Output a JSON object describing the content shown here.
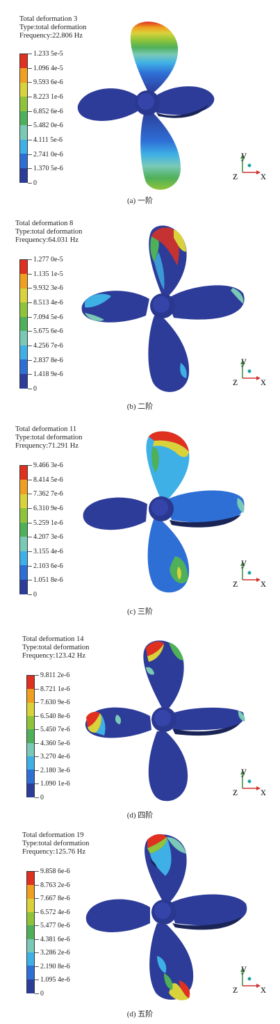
{
  "colors": {
    "scale": [
      "#2b3d99",
      "#2e6fd6",
      "#3fb0e6",
      "#79c9b6",
      "#4fb05a",
      "#8fc43a",
      "#d9d23a",
      "#f0a020",
      "#e03020"
    ],
    "blade_base": "#2d3c98",
    "blade_dark": "#1a2456",
    "axis_y": "#3a8a3a",
    "axis_x": "#d03030",
    "axis_dot": "#20a0a0"
  },
  "axes": {
    "y": "y",
    "x": "x",
    "z": "z"
  },
  "panels": [
    {
      "id": "mode1",
      "title": "Total deformation 3",
      "type": "Type:total deformation",
      "frequency": "Frequency:22.806 Hz",
      "legend": [
        "1.233 5e-5",
        "1.096 4e-5",
        "9.593 6e-6",
        "8.223 1e-6",
        "6.852 6e-6",
        "5.482 0e-6",
        "4.111 5e-6",
        "2.741 0e-6",
        "1.370 5e-6",
        "0"
      ],
      "caption": "(a) 一阶"
    },
    {
      "id": "mode2",
      "title": "Total deformation 8",
      "type": "Type:total deformation",
      "frequency": "Frequency:64.031 Hz",
      "legend": [
        "1.277 0e-5",
        "1.135 1e-5",
        "9.932 3e-6",
        "8.513 4e-6",
        "7.094 5e-6",
        "5.675 6e-6",
        "4.256 7e-6",
        "2.837 8e-6",
        "1.418 9e-6",
        "0"
      ],
      "caption": "(b) 二阶"
    },
    {
      "id": "mode3",
      "title": "Total deformation 11",
      "type": "Type:total deformation",
      "frequency": "Frequency:71.291 Hz",
      "legend": [
        "9.466 3e-6",
        "8.414 5e-6",
        "7.362 7e-6",
        "6.310 9e-6",
        "5.259 1e-6",
        "4.207 3e-6",
        "3.155 4e-6",
        "2.103 6e-6",
        "1.051 8e-6",
        "0"
      ],
      "caption": "(c) 三阶"
    },
    {
      "id": "mode4",
      "title": "Total deformation 14",
      "type": "Type:total deformation",
      "frequency": "Frequency:123.42 Hz",
      "legend": [
        "9.811 2e-6",
        "8.721 1e-6",
        "7.630 9e-6",
        "6.540 8e-6",
        "5.450 7e-6",
        "4.360 5e-6",
        "3.270 4e-6",
        "2.180 3e-6",
        "1.090 1e-6",
        "0"
      ],
      "caption": "(d) 四阶"
    },
    {
      "id": "mode5",
      "title": "Total deformation 19",
      "type": "Type:total deformation",
      "frequency": "Frequency:125.76 Hz",
      "legend": [
        "9.858 6e-6",
        "8.763 2e-6",
        "7.667 8e-6",
        "6.572 4e-6",
        "5.477 0e-6",
        "4.381 6e-6",
        "3.286 2e-6",
        "2.190 8e-6",
        "1.095 4e-6",
        "0"
      ],
      "caption": "(d) 五阶"
    }
  ]
}
